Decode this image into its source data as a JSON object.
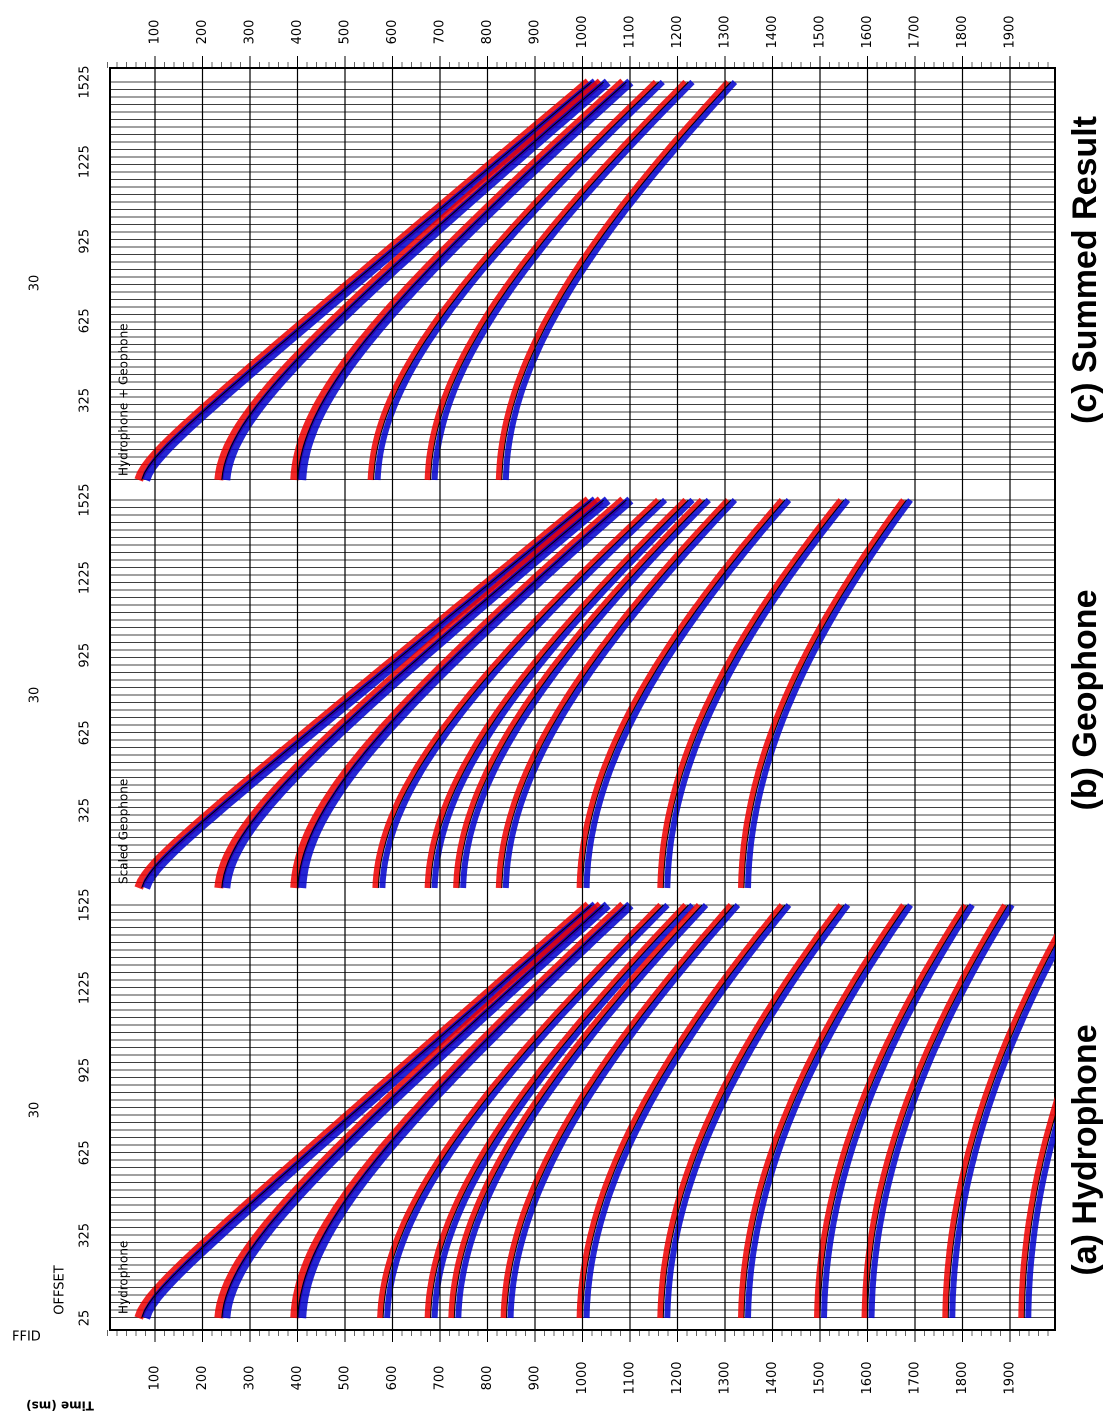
{
  "axis_title": "Time (ms)",
  "header": {
    "ffid": "FFID",
    "offset": "OFFSET"
  },
  "time_ticks": [
    100,
    200,
    300,
    400,
    500,
    600,
    700,
    800,
    900,
    1000,
    1100,
    1200,
    1300,
    1400,
    1500,
    1600,
    1700,
    1800,
    1900
  ],
  "panels": [
    {
      "label": "Hydrophone",
      "caption": "(a) Hydrophone",
      "ffid": "30",
      "offset_ticks": [
        25,
        325,
        625,
        925,
        1225,
        1525
      ],
      "events": [
        70,
        240,
        400,
        580,
        680,
        730,
        840,
        1000,
        1170,
        1340,
        1500,
        1600,
        1770,
        1930
      ]
    },
    {
      "label": "Scaled Geophone",
      "caption": "(b) Geophone",
      "ffid": "30",
      "offset_ticks": [
        325,
        625,
        925,
        1225,
        1525
      ],
      "events": [
        70,
        240,
        400,
        570,
        680,
        740,
        830,
        1000,
        1170,
        1340
      ]
    },
    {
      "label": "Hydrophone + Geophone",
      "caption": "(c) Summed Result",
      "ffid": "30",
      "offset_ticks": [
        325,
        625,
        925,
        1225,
        1525
      ],
      "events": [
        70,
        240,
        400,
        560,
        680,
        830
      ]
    }
  ]
}
